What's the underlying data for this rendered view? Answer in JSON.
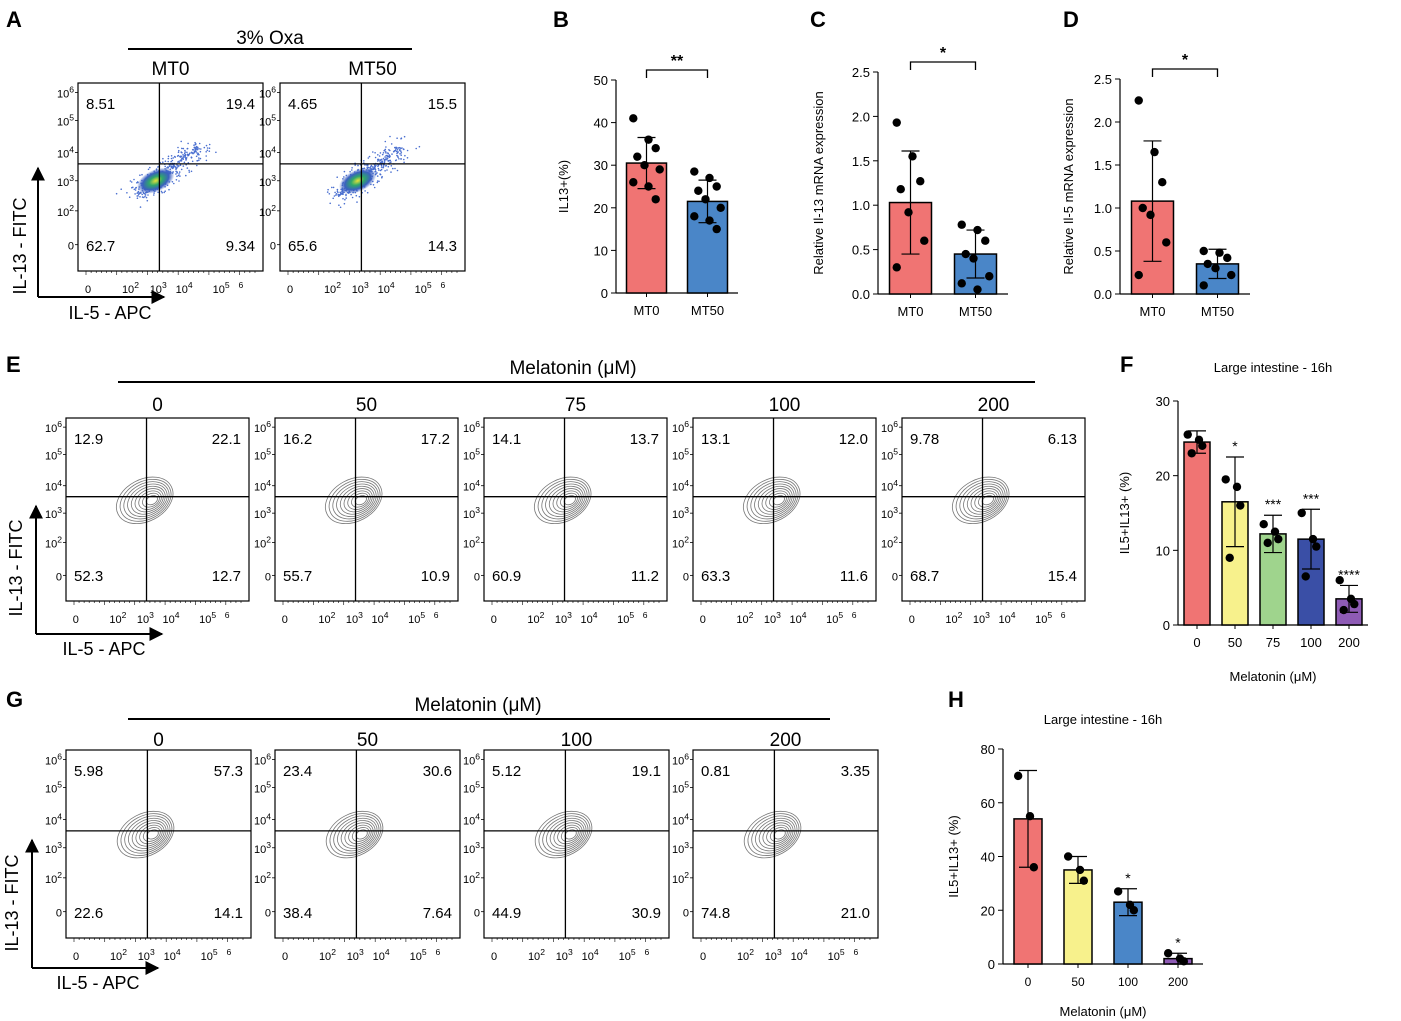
{
  "panels": {
    "A": {
      "letter": "A",
      "treatment": "3% Oxa",
      "y_axis_label": "IL-13 - FITC",
      "x_axis_label": "IL-5 - APC",
      "plots": [
        {
          "title": "MT0",
          "q": [
            "8.51",
            "19.4",
            "62.7",
            "9.34"
          ]
        },
        {
          "title": "MT50",
          "q": [
            "4.65",
            "15.5",
            "65.6",
            "14.3"
          ]
        }
      ]
    },
    "E": {
      "letter": "E",
      "treatment": "Melatonin (μM)",
      "y_axis_label": "IL-13 - FITC",
      "x_axis_label": "IL-5 - APC",
      "plots": [
        {
          "title": "0",
          "q": [
            "12.9",
            "22.1",
            "52.3",
            "12.7"
          ]
        },
        {
          "title": "50",
          "q": [
            "16.2",
            "17.2",
            "55.7",
            "10.9"
          ]
        },
        {
          "title": "75",
          "q": [
            "14.1",
            "13.7",
            "60.9",
            "11.2"
          ]
        },
        {
          "title": "100",
          "q": [
            "13.1",
            "12.0",
            "63.3",
            "11.6"
          ]
        },
        {
          "title": "200",
          "q": [
            "9.78",
            "6.13",
            "68.7",
            "15.4"
          ]
        }
      ]
    },
    "G": {
      "letter": "G",
      "treatment": "Melatonin (μM)",
      "y_axis_label": "IL-13 - FITC",
      "x_axis_label": "IL-5 - APC",
      "plots": [
        {
          "title": "0",
          "q": [
            "5.98",
            "57.3",
            "22.6",
            "14.1"
          ]
        },
        {
          "title": "50",
          "q": [
            "23.4",
            "30.6",
            "38.4",
            "7.64"
          ]
        },
        {
          "title": "100",
          "q": [
            "5.12",
            "19.1",
            "44.9",
            "30.9"
          ]
        },
        {
          "title": "200",
          "q": [
            "0.81",
            "3.35",
            "74.8",
            "21.0"
          ]
        }
      ]
    }
  },
  "flow_axis": {
    "y_ticks": [
      {
        "b": "10",
        "e": "6"
      },
      {
        "b": "10",
        "e": "5"
      },
      {
        "b": "10",
        "e": "4"
      },
      {
        "b": "10",
        "e": "3"
      },
      {
        "b": "10",
        "e": "2"
      },
      {
        "b": "0",
        "e": ""
      }
    ],
    "x_ticks": [
      {
        "b": "0",
        "e": ""
      },
      {
        "b": "10",
        "e": "2"
      },
      {
        "b": "10",
        "e": "3"
      },
      {
        "b": "10",
        "e": "4"
      },
      {
        "b": "10",
        "e": "5"
      },
      {
        "b": "",
        "e": "6"
      }
    ]
  },
  "colors": {
    "red": "#f07473",
    "blue": "#4a86c8",
    "yellow": "#f7f18c",
    "green": "#9fd48d",
    "navy": "#3a4fa6",
    "purple": "#8e5bb5"
  },
  "chart_data": [
    {
      "id": "B",
      "type": "bar",
      "letter": "B",
      "title": "",
      "ylabel": "IL13+(%)",
      "ylim": [
        0,
        50
      ],
      "yticks": [
        0,
        10,
        20,
        30,
        40,
        50
      ],
      "categories": [
        "MT0",
        "MT50"
      ],
      "values": [
        30.5,
        21.5
      ],
      "errors": [
        6.0,
        5.0
      ],
      "points": [
        [
          41,
          36,
          34,
          32,
          30,
          29,
          26,
          25,
          22
        ],
        [
          28.5,
          27,
          25,
          24,
          22,
          20,
          18,
          17,
          15
        ]
      ],
      "colors": [
        "red",
        "blue"
      ],
      "significance": [
        {
          "from": 0,
          "to": 1,
          "label": "**"
        }
      ],
      "bar_sig": []
    },
    {
      "id": "C",
      "type": "bar",
      "letter": "C",
      "title": "",
      "ylabel": "Relative Il-13 mRNA expression",
      "ylim": [
        0,
        2.5
      ],
      "yticks": [
        0.0,
        0.5,
        1.0,
        1.5,
        2.0,
        2.5
      ],
      "categories": [
        "MT0",
        "MT50"
      ],
      "values": [
        1.03,
        0.45
      ],
      "errors": [
        0.58,
        0.27
      ],
      "points": [
        [
          1.93,
          1.55,
          1.27,
          1.18,
          0.92,
          0.6,
          0.3
        ],
        [
          0.78,
          0.72,
          0.6,
          0.45,
          0.4,
          0.2,
          0.12,
          0.05
        ]
      ],
      "colors": [
        "red",
        "blue"
      ],
      "significance": [
        {
          "from": 0,
          "to": 1,
          "label": "*"
        }
      ],
      "bar_sig": []
    },
    {
      "id": "D",
      "type": "bar",
      "letter": "D",
      "title": "",
      "ylabel": "Relative Il-5 mRNA expression",
      "ylim": [
        0,
        2.5
      ],
      "yticks": [
        0.0,
        0.5,
        1.0,
        1.5,
        2.0,
        2.5
      ],
      "categories": [
        "MT0",
        "MT50"
      ],
      "values": [
        1.08,
        0.35
      ],
      "errors": [
        0.7,
        0.17
      ],
      "points": [
        [
          2.25,
          1.65,
          1.3,
          1.0,
          0.92,
          0.6,
          0.22
        ],
        [
          0.5,
          0.48,
          0.42,
          0.35,
          0.3,
          0.22,
          0.1
        ]
      ],
      "colors": [
        "red",
        "blue"
      ],
      "significance": [
        {
          "from": 0,
          "to": 1,
          "label": "*"
        }
      ],
      "bar_sig": []
    },
    {
      "id": "F",
      "type": "bar",
      "letter": "F",
      "title": "Large intestine - 16h",
      "ylabel": "IL5+IL13+ (%)",
      "xlabel": "Melatonin (μM)",
      "ylim": [
        0,
        30
      ],
      "yticks": [
        0,
        10,
        20,
        30
      ],
      "categories": [
        "0",
        "50",
        "75",
        "100",
        "200"
      ],
      "values": [
        24.5,
        16.5,
        12.2,
        11.5,
        3.5
      ],
      "errors": [
        1.5,
        6.0,
        2.5,
        4.0,
        1.8
      ],
      "points": [
        [
          25.5,
          24.8,
          24,
          23
        ],
        [
          19.5,
          18.5,
          16,
          9
        ],
        [
          13.5,
          12.5,
          11.5,
          11
        ],
        [
          15,
          11.5,
          10.5,
          6.5
        ],
        [
          6,
          3.5,
          2.8,
          2
        ]
      ],
      "colors": [
        "red",
        "yellow",
        "green",
        "navy",
        "purple"
      ],
      "significance": [],
      "bar_sig": [
        "",
        "*",
        "***",
        "***",
        "****"
      ]
    },
    {
      "id": "H",
      "type": "bar",
      "letter": "H",
      "title": "Large intestine - 16h",
      "ylabel": "IL5+IL13+ (%)",
      "xlabel": "Melatonin (μM)",
      "ylim": [
        0,
        80
      ],
      "yticks": [
        0,
        20,
        40,
        60,
        80
      ],
      "categories": [
        "0",
        "50",
        "100",
        "200"
      ],
      "values": [
        54,
        35,
        23,
        2
      ],
      "errors": [
        18,
        5,
        5,
        2
      ],
      "points": [
        [
          70,
          55,
          36
        ],
        [
          40,
          35,
          31
        ],
        [
          27,
          22,
          20
        ],
        [
          4,
          2,
          1
        ]
      ],
      "colors": [
        "red",
        "yellow",
        "blue",
        "purple"
      ],
      "significance": [],
      "bar_sig": [
        "",
        "",
        "*",
        "*"
      ]
    }
  ]
}
